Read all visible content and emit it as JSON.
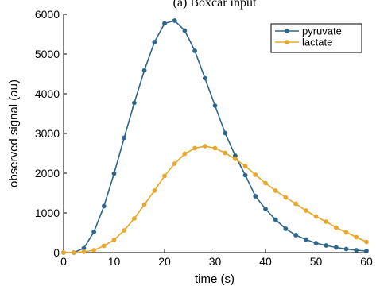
{
  "chart_data": {
    "type": "line",
    "title": "(a) Boxcar input",
    "xlabel": "time (s)",
    "ylabel": "observed signal (au)",
    "xlim": [
      0,
      60
    ],
    "ylim": [
      0,
      6000
    ],
    "xticks": [
      0,
      10,
      20,
      30,
      40,
      50,
      60
    ],
    "yticks": [
      0,
      1000,
      2000,
      3000,
      4000,
      5000,
      6000
    ],
    "grid": false,
    "legend_position": "top-right",
    "x": [
      0,
      2,
      4,
      6,
      8,
      10,
      12,
      14,
      16,
      18,
      20,
      22,
      24,
      26,
      28,
      30,
      32,
      34,
      36,
      38,
      40,
      42,
      44,
      46,
      48,
      50,
      52,
      54,
      56,
      58,
      60
    ],
    "series": [
      {
        "name": "pyruvate",
        "color": "#2d6688",
        "values": [
          0,
          0,
          110,
          520,
          1170,
          1990,
          2890,
          3770,
          4590,
          5300,
          5770,
          5840,
          5590,
          5080,
          4390,
          3700,
          3010,
          2440,
          1950,
          1420,
          1100,
          830,
          600,
          440,
          330,
          240,
          180,
          130,
          90,
          60,
          40
        ]
      },
      {
        "name": "lactate",
        "color": "#e8a72c",
        "values": [
          0,
          0,
          20,
          60,
          170,
          320,
          560,
          860,
          1210,
          1560,
          1930,
          2240,
          2490,
          2630,
          2680,
          2630,
          2510,
          2360,
          2180,
          1960,
          1750,
          1560,
          1390,
          1230,
          1060,
          910,
          780,
          630,
          510,
          390,
          270
        ]
      }
    ]
  }
}
